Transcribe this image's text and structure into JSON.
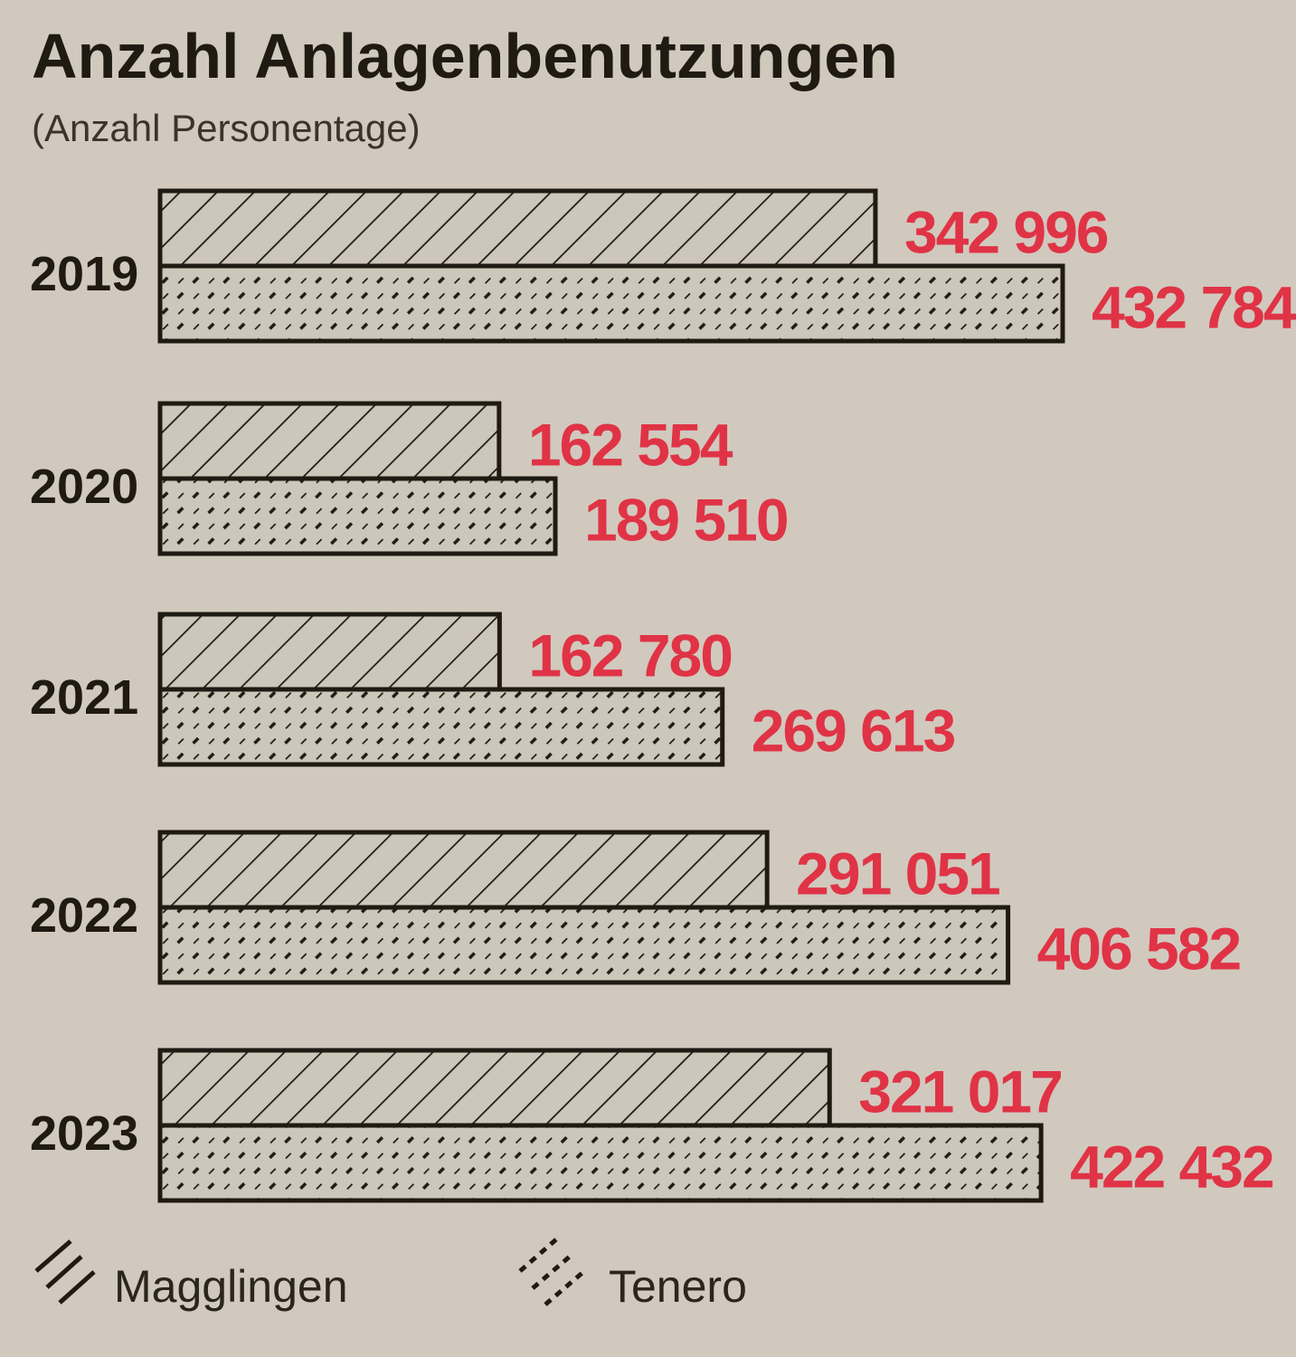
{
  "title": "Anzahl Anlagenbenutzungen",
  "subtitle": "(Anzahl Personentage)",
  "colors": {
    "background": "#d1c9be",
    "bar_fill": "#cdc6bb",
    "ink": "#1f1a12",
    "value_label": "#e03346"
  },
  "chart_data": {
    "type": "bar",
    "orientation": "horizontal",
    "categories": [
      "2019",
      "2020",
      "2021",
      "2022",
      "2023"
    ],
    "series": [
      {
        "name": "Magglingen",
        "pattern": "diagonal-lines",
        "values": [
          342996,
          162554,
          162780,
          291051,
          321017
        ],
        "labels": [
          "342 996",
          "162 554",
          "162 780",
          "291 051",
          "321 017"
        ]
      },
      {
        "name": "Tenero",
        "pattern": "dashed-diagonal",
        "values": [
          432784,
          189510,
          269613,
          406582,
          422432
        ],
        "labels": [
          "432 784",
          "189 510",
          "269 613",
          "406 582",
          "422 432"
        ]
      }
    ],
    "xlim": [
      0,
      432784
    ],
    "axes_visible": false,
    "grid": false,
    "legend_position": "bottom"
  }
}
